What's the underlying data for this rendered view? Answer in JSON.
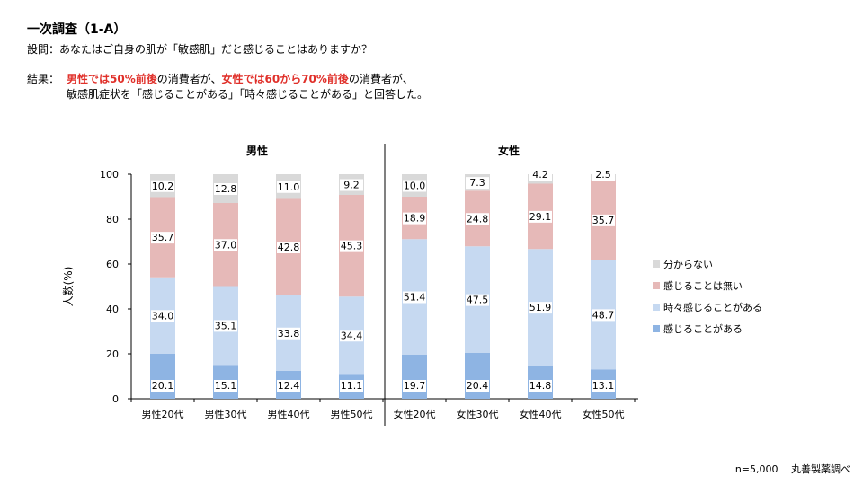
{
  "page": {
    "title": "一次調査（1-A）",
    "question": "設問：あなたはご自身の肌が「敏感肌」だと感じることはありますか？",
    "result_prefix": "結果：",
    "result_hl1": "男性では50%前後",
    "result_text1": "の消費者が、",
    "result_hl2": "女性では60から70%前後",
    "result_text2": "の消費者が、",
    "result_line2": "敏感肌症状を「感じることがある」「時々感じることがある」と回答した。",
    "footer": "n=5,000　 丸善製薬調べ"
  },
  "chart_data": {
    "type": "bar",
    "stacked": true,
    "group_labels": [
      "男性",
      "女性"
    ],
    "categories": [
      "男性20代",
      "男性30代",
      "男性40代",
      "男性50代",
      "女性20代",
      "女性30代",
      "女性40代",
      "女性50代"
    ],
    "ylabel": "人数(%)",
    "ylim": [
      0,
      100
    ],
    "yticks": [
      0,
      20,
      40,
      60,
      80,
      100
    ],
    "series": [
      {
        "name": "感じることがある",
        "color": "#8eb4e3",
        "values": [
          20.1,
          15.1,
          12.4,
          11.1,
          19.7,
          20.4,
          14.8,
          13.1
        ]
      },
      {
        "name": "時々感じることがある",
        "color": "#c6d9f1",
        "values": [
          34.0,
          35.1,
          33.8,
          34.4,
          51.4,
          47.5,
          51.9,
          48.7
        ]
      },
      {
        "name": "感じることは無い",
        "color": "#e6b9b8",
        "values": [
          35.7,
          37.0,
          42.8,
          45.3,
          18.9,
          24.8,
          29.1,
          35.7
        ]
      },
      {
        "name": "分からない",
        "color": "#d9d9d9",
        "values": [
          10.2,
          12.8,
          11.0,
          9.2,
          10.0,
          7.3,
          4.2,
          2.5
        ]
      }
    ],
    "legend_position": "right"
  }
}
